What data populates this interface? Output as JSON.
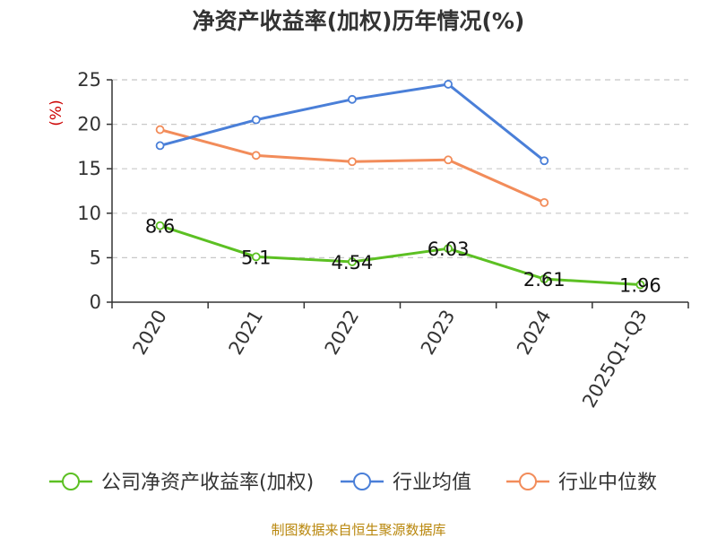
{
  "chart_data": {
    "type": "line",
    "title": "净资产收益率(加权)历年情况(%)",
    "xlabel": "",
    "ylabel": "(%)",
    "categories": [
      "2020",
      "2021",
      "2022",
      "2023",
      "2024",
      "2025Q1-Q3"
    ],
    "ylim": [
      0,
      25
    ],
    "yticks": [
      0,
      5,
      10,
      15,
      20,
      25
    ],
    "grid": true,
    "legend_position": "bottom",
    "series": [
      {
        "name": "公司净资产收益率(加权)",
        "color": "#5cc023",
        "values": [
          8.6,
          5.1,
          4.54,
          6.03,
          2.61,
          1.96
        ],
        "labels": [
          "8.6",
          "5.1",
          "4.54",
          "6.03",
          "2.61",
          "1.96"
        ]
      },
      {
        "name": "行业均值",
        "color": "#4a7fd8",
        "values": [
          17.6,
          20.5,
          22.8,
          24.5,
          15.9,
          null
        ]
      },
      {
        "name": "行业中位数",
        "color": "#f28c5a",
        "values": [
          19.4,
          16.5,
          15.8,
          16.0,
          11.2,
          null
        ]
      }
    ],
    "source": "制图数据来自恒生聚源数据库"
  }
}
